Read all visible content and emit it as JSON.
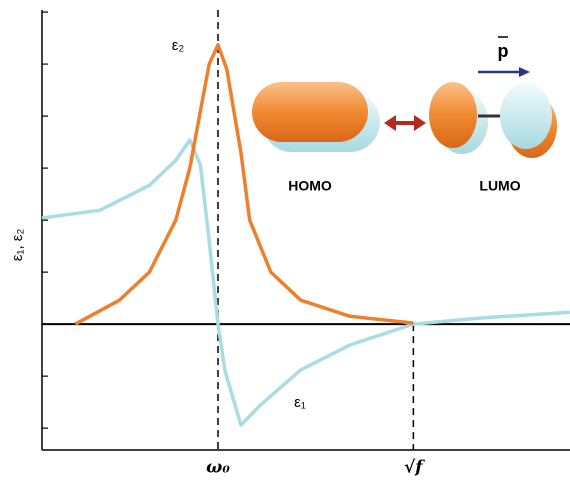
{
  "chart_data": {
    "type": "line",
    "y_label": "ε₁, ε₂",
    "xlim": [
      0,
      3
    ],
    "ylim": [
      -2.42,
      6.04
    ],
    "xticks": [
      {
        "value": 1,
        "label": "ω₀"
      },
      {
        "value": 2.11,
        "label": "√f"
      }
    ],
    "yticks": [
      -2,
      -1,
      0,
      1,
      2,
      3,
      4,
      5,
      6
    ],
    "series": [
      {
        "name": "ε₂",
        "color": "#ee7f2d",
        "x": [
          0.19,
          0.44,
          0.61,
          0.76,
          0.84,
          0.9,
          0.95,
          1.0,
          1.05,
          1.13,
          1.18,
          1.3,
          1.47,
          1.75,
          2.11
        ],
        "values": [
          0,
          0.46,
          1.0,
          2.0,
          3.0,
          4.1,
          5.0,
          5.37,
          4.9,
          3.3,
          2.0,
          1.0,
          0.46,
          0.15,
          0.02
        ]
      },
      {
        "name": "ε₁",
        "color": "#a9dce3",
        "x": [
          0,
          0.33,
          0.61,
          0.76,
          0.84,
          0.9,
          0.95,
          1.0,
          1.04,
          1.13,
          1.24,
          1.47,
          1.75,
          2.11,
          2.5,
          3.0
        ],
        "values": [
          2.04,
          2.19,
          2.67,
          3.15,
          3.54,
          3.06,
          1.6,
          0,
          -0.9,
          -1.94,
          -1.56,
          -0.88,
          -0.4,
          0,
          0.12,
          0.23
        ]
      }
    ],
    "annotations": [
      "HOMO",
      "LUMO",
      "p"
    ]
  }
}
